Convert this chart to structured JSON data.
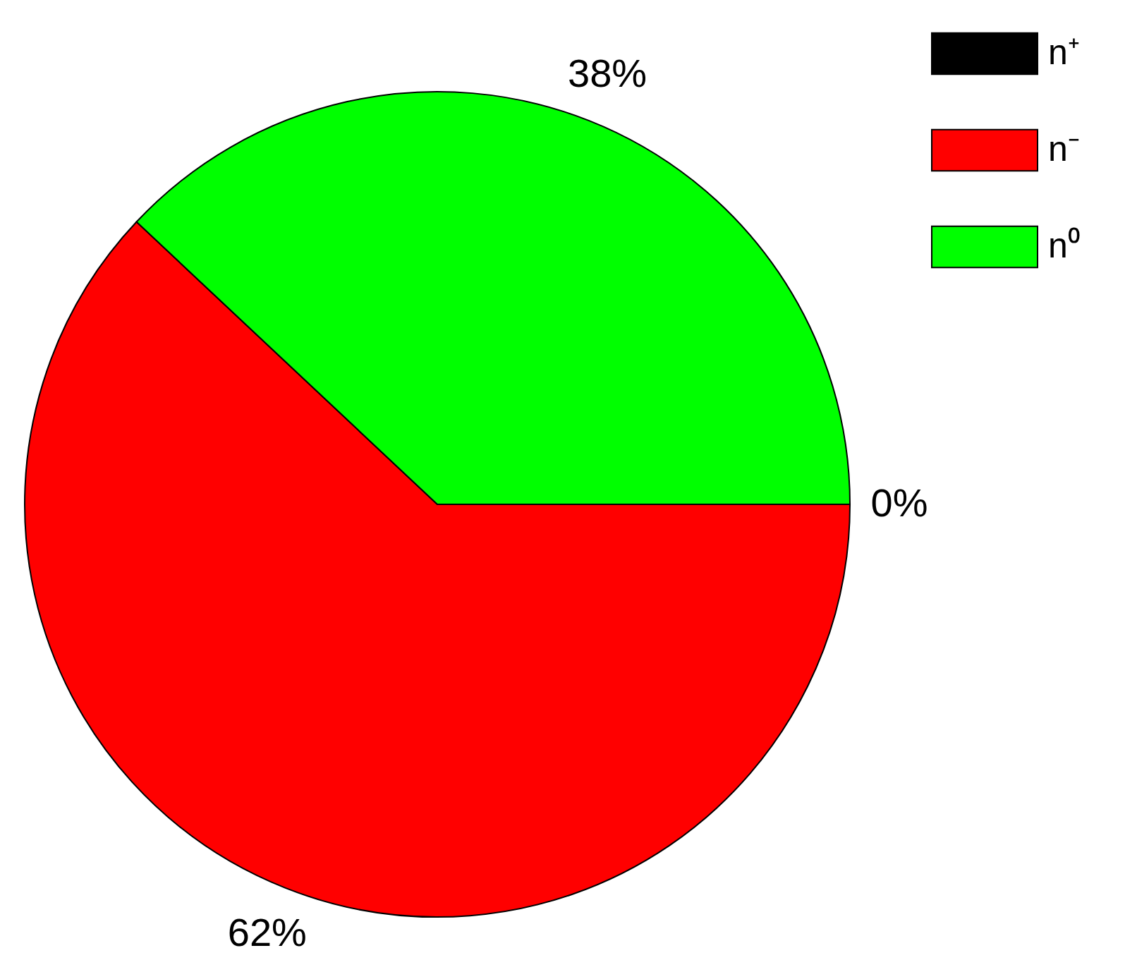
{
  "chart_data": {
    "type": "pie",
    "categories": [
      "n⁺",
      "n⁻",
      "n⁰"
    ],
    "values": [
      0,
      62,
      38
    ],
    "colors": [
      "#000000",
      "#ff0000",
      "#00ff00"
    ],
    "value_labels": [
      "0%",
      "62%",
      "38%"
    ],
    "legend": "top right"
  }
}
